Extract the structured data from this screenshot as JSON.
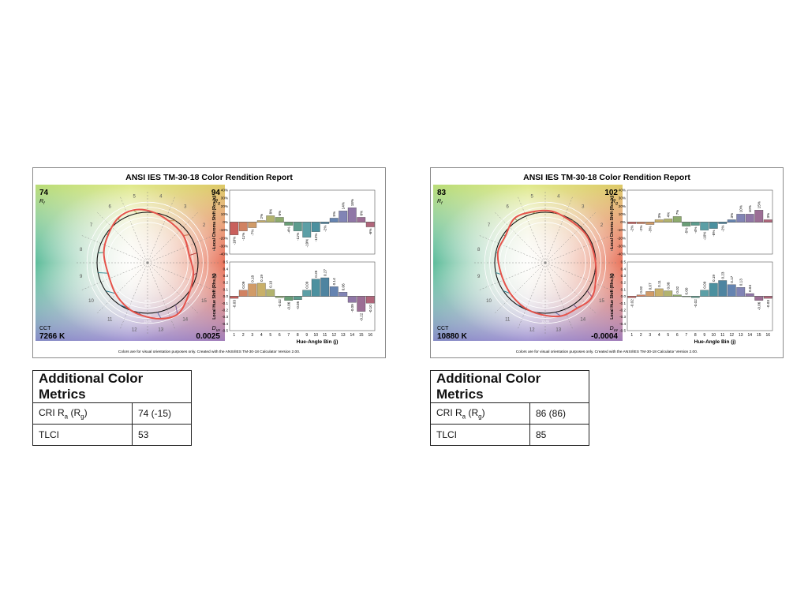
{
  "reports": [
    {
      "title": "ANSI IES TM-30-18 Color Rendition Report",
      "rf": "74",
      "rf_label": "R",
      "rf_sub": "f",
      "rg": "94",
      "rg_label": "R",
      "rg_sub": "g",
      "cct_label": "CCT",
      "cct": "7266 K",
      "duv_label": "D",
      "duv_sub": "uv",
      "duv": "0.0025",
      "footer": "Colors are for visual orientation purposes only. Created with the ANSI/IES TM-30-18 Calculator Version 2.00.",
      "metrics": {
        "heading": "Additional Color Metrics",
        "cri_label": "CRI R",
        "cri_sub_a": "a",
        "cri_sub_g": "g",
        "cri_value": "74 (-15)",
        "tlci_label": "TLCI",
        "tlci_value": "53"
      }
    },
    {
      "title": "ANSI IES TM-30-18 Color Rendition Report",
      "rf": "83",
      "rf_label": "R",
      "rf_sub": "f",
      "rg": "102",
      "rg_label": "R",
      "rg_sub": "g",
      "cct_label": "CCT",
      "cct": "10880 K",
      "duv_label": "D",
      "duv_sub": "uv",
      "duv": "-0.0004",
      "footer": "Colors are for visual orientation purposes only. Created with the ANSI/IES TM-30-18 Calculator Version 2.00.",
      "metrics": {
        "heading": "Additional Color Metrics",
        "cri_label": "CRI R",
        "cri_sub_a": "a",
        "cri_sub_g": "g",
        "cri_value": "86 (86)",
        "tlci_label": "TLCI",
        "tlci_value": "85"
      }
    }
  ],
  "chart_data": [
    {
      "type": "bar",
      "title": "Local Chroma Shift",
      "ylabel": "Local Chroma Shift (Rcs,hj)",
      "xlabel": "Hue-Angle Bin (j)",
      "categories": [
        "1",
        "2",
        "3",
        "4",
        "5",
        "6",
        "7",
        "8",
        "9",
        "10",
        "11",
        "12",
        "13",
        "14",
        "15",
        "16"
      ],
      "values": [
        -16,
        -11,
        -7,
        2,
        8,
        6,
        -4,
        -11,
        -19,
        -12,
        -2,
        5,
        14,
        18,
        6,
        -6
      ],
      "value_labels": [
        "-16%",
        "-11%",
        "-7%",
        "2%",
        "8%",
        "6%",
        "-4%",
        "-11%",
        "-19%",
        "-12%",
        "-2%",
        "5%",
        "14%",
        "18%",
        "6%",
        "-6%"
      ],
      "ylim": [
        -40,
        40
      ],
      "yticks": [
        "40%",
        "30%",
        "20%",
        "10%",
        "0%",
        "-10%",
        "-20%",
        "-30%",
        "-40%"
      ]
    },
    {
      "type": "bar",
      "title": "Local Hue Shift",
      "ylabel": "Local Hue Shift (Rhs,hj)",
      "xlabel": "Hue-Angle Bin (j)",
      "categories": [
        "1",
        "2",
        "3",
        "4",
        "5",
        "6",
        "7",
        "8",
        "9",
        "10",
        "11",
        "12",
        "13",
        "14",
        "15",
        "16"
      ],
      "values": [
        -0.03,
        0.09,
        0.18,
        0.19,
        0.1,
        -0.02,
        -0.06,
        -0.05,
        0.09,
        0.25,
        0.27,
        0.14,
        0.06,
        -0.09,
        -0.22,
        -0.1
      ],
      "value_labels": [
        "-0.03",
        "0.09",
        "0.18",
        "0.19",
        "0.10",
        "-0.02",
        "-0.06",
        "-0.05",
        "0.09",
        "0.25",
        "0.27",
        "0.14",
        "0.06",
        "-0.09",
        "-0.22",
        "-0.10"
      ],
      "ylim": [
        -0.5,
        0.5
      ],
      "yticks": [
        "0.5",
        "0.4",
        "0.3",
        "0.2",
        "0.1",
        "0.0",
        "-0.1",
        "-0.2",
        "-0.3",
        "-0.4",
        "-0.5"
      ]
    },
    {
      "type": "bar",
      "title": "Local Chroma Shift",
      "ylabel": "Local Chroma Shift (Rcs,hj)",
      "xlabel": "Hue-Angle Bin (j)",
      "categories": [
        "1",
        "2",
        "3",
        "4",
        "5",
        "6",
        "7",
        "8",
        "9",
        "10",
        "11",
        "12",
        "13",
        "14",
        "15",
        "16"
      ],
      "values": [
        -2,
        -2,
        -3,
        3,
        4,
        7,
        -5,
        -4,
        -10,
        -8,
        -2,
        3,
        10,
        10,
        15,
        3
      ],
      "value_labels": [
        "-2%",
        "-2%",
        "-3%",
        "3%",
        "4%",
        "7%",
        "-5%",
        "-4%",
        "-10%",
        "-8%",
        "-2%",
        "3%",
        "10%",
        "10%",
        "15%",
        "3%"
      ],
      "ylim": [
        -40,
        40
      ],
      "yticks": [
        "40%",
        "30%",
        "20%",
        "10%",
        "0%",
        "-10%",
        "-20%",
        "-30%",
        "-40%"
      ]
    },
    {
      "type": "bar",
      "title": "Local Hue Shift",
      "ylabel": "Local Hue Shift (Rhs,hj)",
      "xlabel": "Hue-Angle Bin (j)",
      "categories": [
        "1",
        "2",
        "3",
        "4",
        "5",
        "6",
        "7",
        "8",
        "9",
        "10",
        "11",
        "12",
        "13",
        "14",
        "15",
        "16"
      ],
      "values": [
        -0.02,
        0.02,
        0.07,
        0.11,
        0.08,
        0.02,
        0.0,
        -0.02,
        0.09,
        0.19,
        0.23,
        0.17,
        0.13,
        0.04,
        -0.06,
        -0.03
      ],
      "value_labels": [
        "-0.02",
        "0.02",
        "0.07",
        "0.11",
        "0.08",
        "0.02",
        "0.00",
        "-0.02",
        "0.09",
        "0.19",
        "0.23",
        "0.17",
        "0.13",
        "0.04",
        "-0.06",
        "-0.03"
      ],
      "ylim": [
        -0.5,
        0.5
      ],
      "yticks": [
        "0.5",
        "0.4",
        "0.3",
        "0.2",
        "0.1",
        "0.0",
        "-0.1",
        "-0.2",
        "-0.3",
        "-0.4",
        "-0.5"
      ]
    }
  ],
  "vector_graphic": {
    "hue_bins": [
      "1",
      "2",
      "3",
      "4",
      "5",
      "6",
      "7",
      "8",
      "9",
      "10",
      "11",
      "12",
      "13",
      "14",
      "15",
      "16"
    ],
    "ring_labels": [
      "80%",
      "90%",
      "110%",
      "120%"
    ]
  },
  "bin_colors": [
    "#c0433f",
    "#c96c46",
    "#c98a4e",
    "#bfa24f",
    "#a4a655",
    "#7a9c54",
    "#4f8d5e",
    "#3f8b7a",
    "#3f8e96",
    "#2b7c8e",
    "#2f6f8f",
    "#4a6ea3",
    "#6b6fa8",
    "#7d5f98",
    "#8b5582",
    "#a24a63"
  ],
  "colors": {
    "test_curve": "#e5534b",
    "reference_curve": "#111111"
  }
}
